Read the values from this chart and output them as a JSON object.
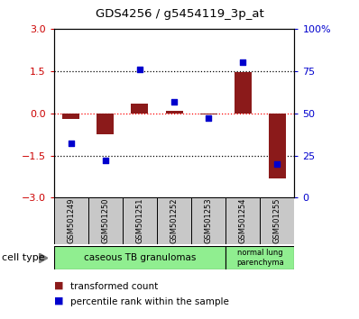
{
  "title": "GDS4256 / g5454119_3p_at",
  "samples": [
    "GSM501249",
    "GSM501250",
    "GSM501251",
    "GSM501252",
    "GSM501253",
    "GSM501254",
    "GSM501255"
  ],
  "transformed_count": [
    -0.2,
    -0.75,
    0.35,
    0.1,
    -0.05,
    1.45,
    -2.3
  ],
  "percentile_rank": [
    32,
    22,
    76,
    57,
    47,
    80,
    20
  ],
  "ylim_left": [
    -3,
    3
  ],
  "ylim_right": [
    0,
    100
  ],
  "yticks_left": [
    -3,
    -1.5,
    0,
    1.5,
    3
  ],
  "yticks_right": [
    0,
    25,
    50,
    75,
    100
  ],
  "ytick_labels_right": [
    "0",
    "25",
    "50",
    "75",
    "100%"
  ],
  "hlines": [
    -1.5,
    0,
    1.5
  ],
  "hline_colors": [
    "black",
    "red",
    "black"
  ],
  "hline_styles": [
    "dotted",
    "dotted",
    "dotted"
  ],
  "bar_color": "#8B1A1A",
  "dot_color": "#0000CD",
  "cell_type_labels": [
    "caseous TB granulomas",
    "normal lung\nparenchyma"
  ],
  "cell_type_colors": [
    "#90EE90",
    "#90EE90"
  ],
  "xlabel_color_left": "#CC0000",
  "xlabel_color_right": "#0000CD",
  "legend_red": "transformed count",
  "legend_blue": "percentile rank within the sample",
  "tick_label_area_color": "#C8C8C8"
}
